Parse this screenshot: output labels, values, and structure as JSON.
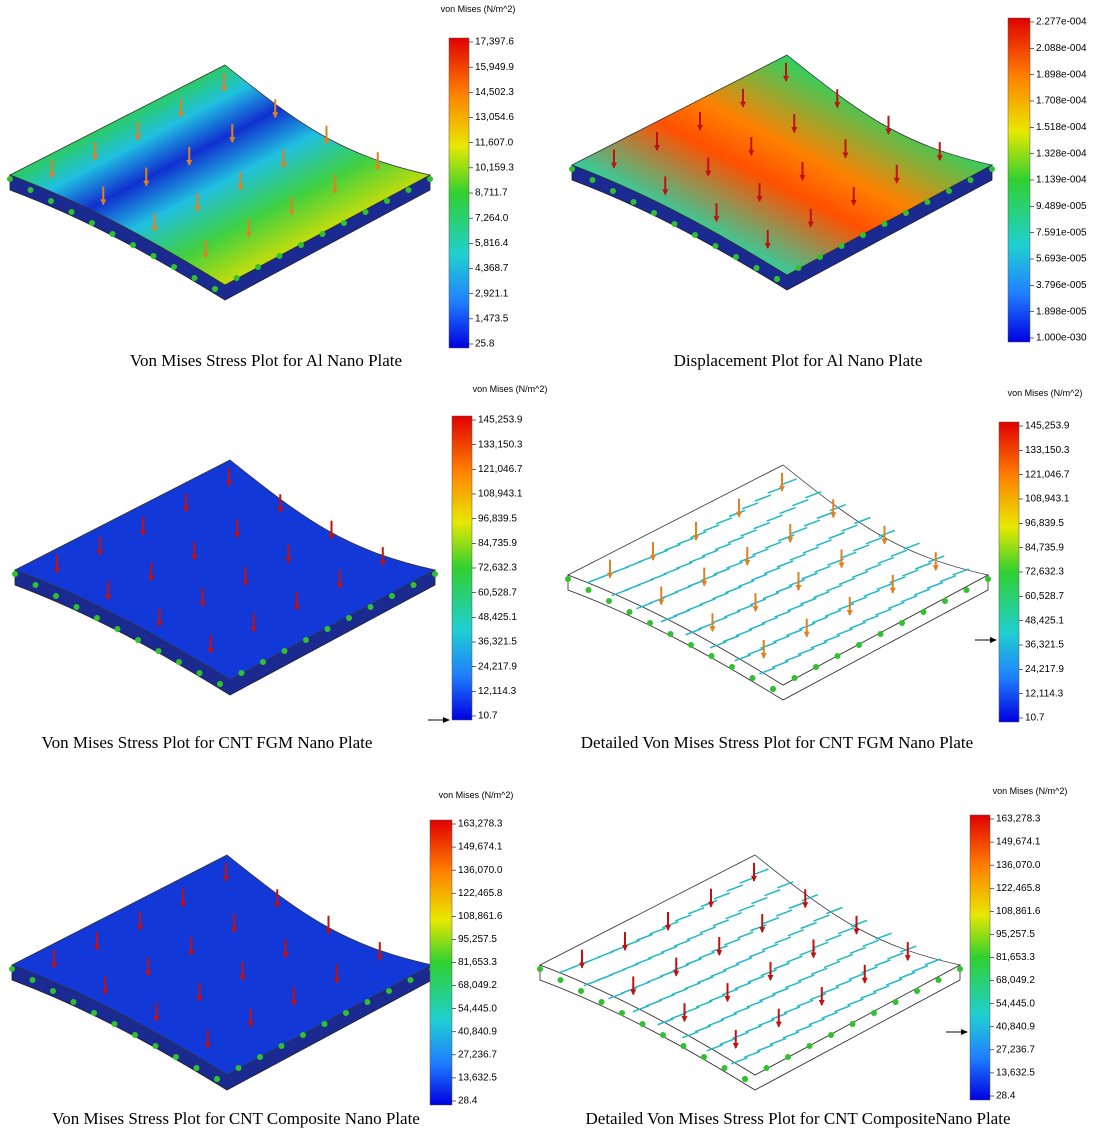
{
  "panels": [
    {
      "caption": "Von Mises Stress Plot for Al Nano Plate",
      "legend": {
        "title": "von Mises (N/m^2)",
        "labels": [
          "17,397.6",
          "15,949.9",
          "14,502.3",
          "13,054.6",
          "11,607.0",
          "10,159.3",
          "8,711.7",
          "7,264.0",
          "5,816.4",
          "4,368.7",
          "2,921.1",
          "1,473.5",
          "25.8"
        ]
      }
    },
    {
      "caption": "Displacement Plot for Al Nano Plate",
      "legend": {
        "labels": [
          "2.277e-004",
          "2.088e-004",
          "1.898e-004",
          "1.708e-004",
          "1.518e-004",
          "1.328e-004",
          "1.139e-004",
          "9.489e-005",
          "7.591e-005",
          "5.693e-005",
          "3.796e-005",
          "1.898e-005",
          "1.000e-030"
        ]
      }
    },
    {
      "caption": "Von Mises Stress Plot for CNT FGM Nano Plate",
      "legend": {
        "title": "von Mises (N/m^2)",
        "labels": [
          "145,253.9",
          "133,150.3",
          "121,046.7",
          "108,943.1",
          "96,839.5",
          "84,735.9",
          "72,632.3",
          "60,528.7",
          "48,425.1",
          "36,321.5",
          "24,217.9",
          "12,114.3",
          "10.7"
        ]
      }
    },
    {
      "caption": "Detailed Von Mises Stress Plot for CNT FGM Nano Plate",
      "legend": {
        "title": "von Mises (N/m^2)",
        "labels": [
          "145,253.9",
          "133,150.3",
          "121,046.7",
          "108,943.1",
          "96,839.5",
          "84,735.9",
          "72,632.3",
          "60,528.7",
          "48,425.1",
          "36,321.5",
          "24,217.9",
          "12,114.3",
          "10.7"
        ]
      }
    },
    {
      "caption": "Von Mises Stress Plot for CNT Composite Nano Plate",
      "legend": {
        "title": "von Mises (N/m^2)",
        "labels": [
          "163,278.3",
          "149,674.1",
          "136,070.0",
          "122,465.8",
          "108,861.6",
          "95,257.5",
          "81,653.3",
          "68,049.2",
          "54,445.0",
          "40,840.9",
          "27,236.7",
          "13,632.5",
          "28.4"
        ]
      }
    },
    {
      "caption": "Detailed Von Mises Stress Plot for CNT CompositeNano Plate",
      "legend": {
        "title": "von Mises (N/m^2)",
        "labels": [
          "163,278.3",
          "149,674.1",
          "136,070.0",
          "122,465.8",
          "108,861.6",
          "95,257.5",
          "81,653.3",
          "68,049.2",
          "54,445.0",
          "40,840.9",
          "27,236.7",
          "13,632.5",
          "28.4"
        ]
      }
    }
  ]
}
